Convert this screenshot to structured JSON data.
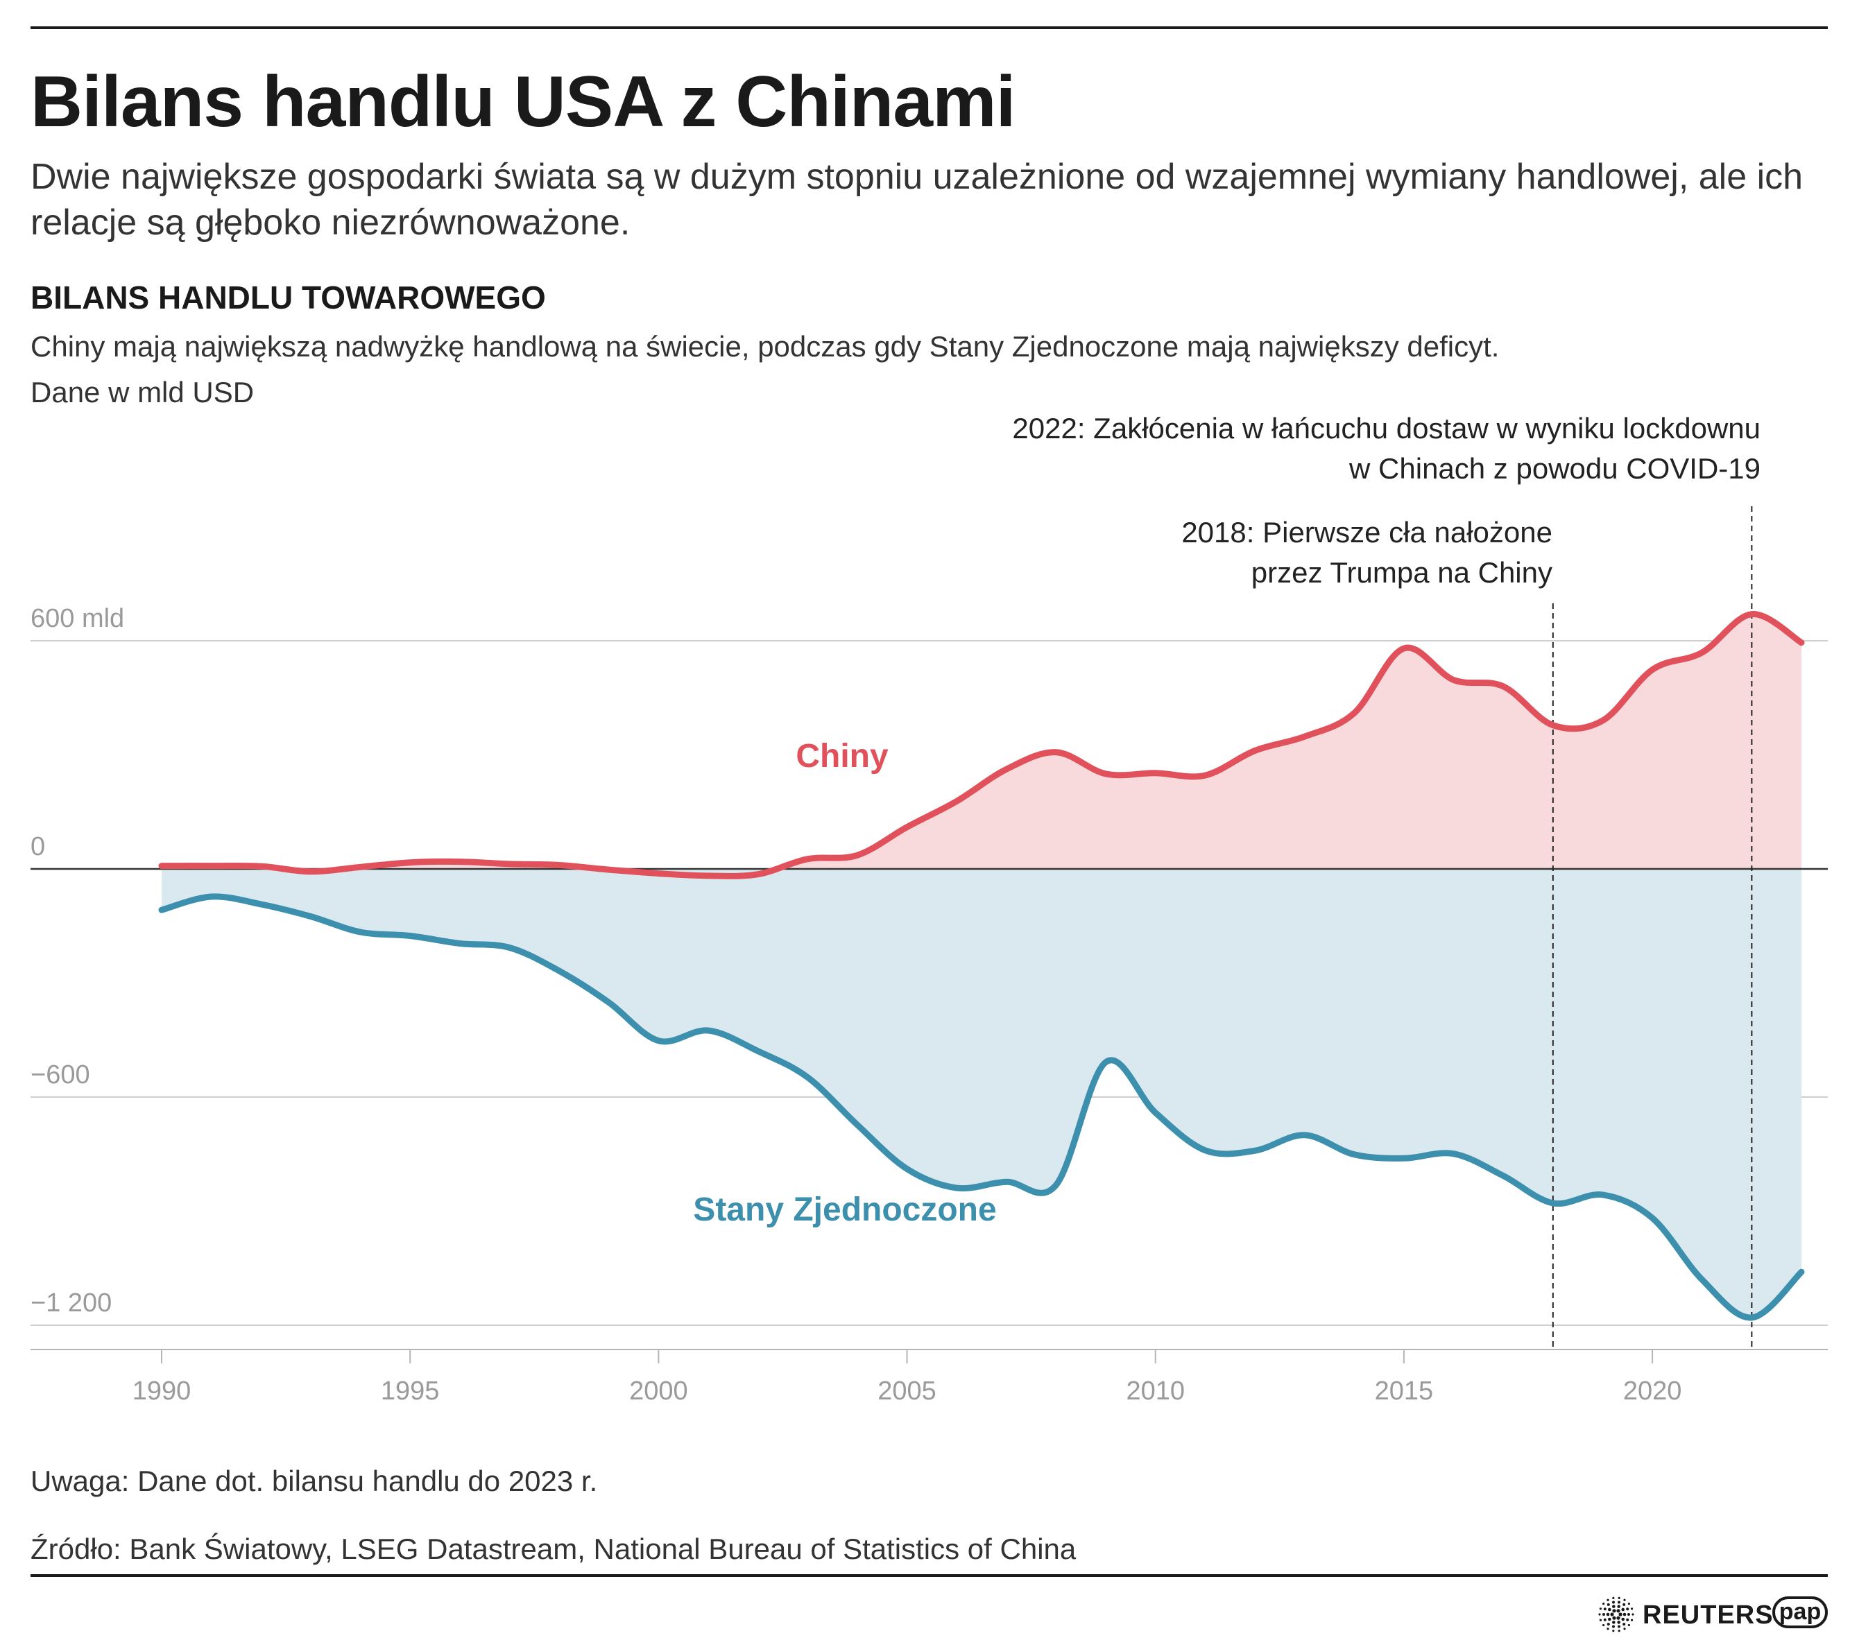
{
  "header": {
    "title": "Bilans handlu USA z Chinami",
    "subtitle": "Dwie największe gospodarki świata są w dużym stopniu uzależnione od wzajemnej wymiany handlowej, ale ich relacje są głęboko niezrównoważone.",
    "section_title": "BILANS HANDLU TOWAROWEGO",
    "section_description": "Chiny mają największą nadwyżkę handlową na świecie, podczas gdy Stany Zjednoczone mają największy deficyt.",
    "units": "Dane w mld USD"
  },
  "chart_data": {
    "type": "area",
    "x": [
      1990,
      1991,
      1992,
      1993,
      1994,
      1995,
      1996,
      1997,
      1998,
      1999,
      2000,
      2001,
      2002,
      2003,
      2004,
      2005,
      2006,
      2007,
      2008,
      2009,
      2010,
      2011,
      2012,
      2013,
      2014,
      2015,
      2016,
      2017,
      2018,
      2019,
      2020,
      2021,
      2022,
      2023
    ],
    "series": [
      {
        "name": "Chiny",
        "color": "#e0515b",
        "fill": "#f9dadc",
        "values": [
          8,
          8,
          7,
          -7,
          5,
          17,
          19,
          13,
          10,
          -2,
          -12,
          -18,
          -14,
          26,
          36,
          110,
          178,
          262,
          307,
          250,
          252,
          246,
          311,
          348,
          410,
          580,
          497,
          480,
          378,
          390,
          524,
          569,
          670,
          595
        ]
      },
      {
        "name": "Stany Zjednoczone",
        "color": "#3d8fae",
        "fill": "#dae9ef",
        "values": [
          -108,
          -73,
          -93,
          -125,
          -166,
          -176,
          -196,
          -207,
          -268,
          -351,
          -452,
          -425,
          -479,
          -548,
          -673,
          -789,
          -839,
          -823,
          -831,
          -508,
          -641,
          -740,
          -741,
          -700,
          -751,
          -761,
          -749,
          -807,
          -879,
          -857,
          -918,
          -1080,
          -1180,
          -1060
        ]
      }
    ],
    "y_ticks": [
      {
        "value": 600,
        "label": "600 mld"
      },
      {
        "value": 0,
        "label": "0"
      },
      {
        "value": -600,
        "label": "−600"
      },
      {
        "value": -1200,
        "label": "−1 200"
      }
    ],
    "x_ticks": [
      1990,
      1995,
      2000,
      2005,
      2010,
      2015,
      2020
    ],
    "ylim": [
      -1200,
      660
    ],
    "xlim": [
      1990,
      2023
    ],
    "annotations": [
      {
        "x": 2018,
        "lines": [
          "2018: Pierwsze cła nałożone",
          "przez Trumpa na Chiny"
        ]
      },
      {
        "x": 2022,
        "lines": [
          "2022: Zakłócenia w łańcuchu dostaw w wyniku lockdownu",
          "w Chinach z powodu COVID-19"
        ]
      }
    ],
    "grid": "horizontal",
    "legend": "inline labels"
  },
  "footer": {
    "note": "Uwaga: Dane dot. bilansu handlu do 2023 r.",
    "source": "Źródło: Bank Światowy, LSEG Datastream, National Bureau of Statistics of China",
    "reuters_label": "REUTERS",
    "pap_label": "pap"
  }
}
